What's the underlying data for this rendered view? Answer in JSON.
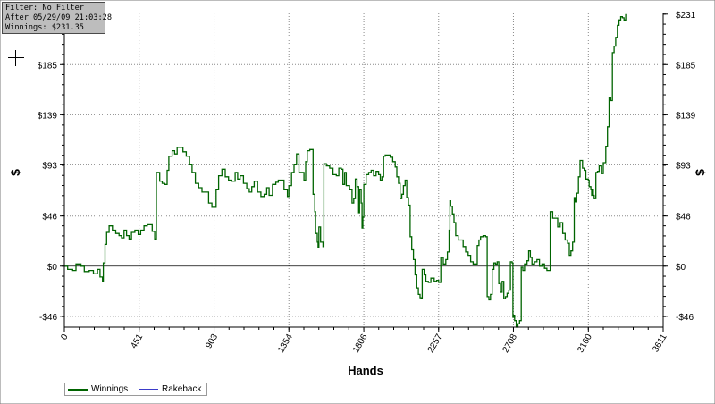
{
  "info_box": {
    "filter": "Filter: No Filter",
    "after": "After 05/29/09 21:03:28",
    "winnings": "Winnings: $231.35"
  },
  "chart_data": {
    "type": "line",
    "xlabel": "Hands",
    "ylabel_left": "$",
    "ylabel_right": "$",
    "xlim": [
      0,
      3611
    ],
    "ylim": [
      -56,
      232
    ],
    "x_ticks": [
      0,
      451,
      903,
      1354,
      1806,
      2257,
      2708,
      3160,
      3611
    ],
    "y_ticks": [
      {
        "value": 231.35,
        "label": "$231"
      },
      {
        "value": 185,
        "label": "$185"
      },
      {
        "value": 139,
        "label": "$139"
      },
      {
        "value": 93,
        "label": "$93"
      },
      {
        "value": 46,
        "label": "$46"
      },
      {
        "value": 0,
        "label": "$0"
      },
      {
        "value": -46,
        "label": "-$46"
      }
    ],
    "grid": true,
    "legend_position": "bottom-left",
    "series": [
      {
        "name": "Winnings",
        "color": "#006400",
        "points": [
          [
            0,
            0
          ],
          [
            20,
            -3
          ],
          [
            50,
            -4
          ],
          [
            70,
            2
          ],
          [
            100,
            0
          ],
          [
            120,
            -5
          ],
          [
            150,
            -4
          ],
          [
            175,
            -7
          ],
          [
            200,
            -3
          ],
          [
            215,
            -10
          ],
          [
            230,
            -14
          ],
          [
            235,
            3
          ],
          [
            245,
            20
          ],
          [
            255,
            31
          ],
          [
            270,
            37
          ],
          [
            290,
            33
          ],
          [
            310,
            30
          ],
          [
            330,
            28
          ],
          [
            345,
            26
          ],
          [
            360,
            33
          ],
          [
            375,
            28
          ],
          [
            390,
            25
          ],
          [
            405,
            31
          ],
          [
            425,
            33
          ],
          [
            445,
            29
          ],
          [
            460,
            33
          ],
          [
            480,
            37
          ],
          [
            500,
            38
          ],
          [
            515,
            38
          ],
          [
            530,
            32
          ],
          [
            545,
            25
          ],
          [
            555,
            86
          ],
          [
            575,
            78
          ],
          [
            590,
            76
          ],
          [
            605,
            75
          ],
          [
            620,
            88
          ],
          [
            630,
            101
          ],
          [
            650,
            106
          ],
          [
            665,
            103
          ],
          [
            680,
            109
          ],
          [
            700,
            109
          ],
          [
            715,
            105
          ],
          [
            735,
            101
          ],
          [
            755,
            93
          ],
          [
            770,
            86
          ],
          [
            790,
            76
          ],
          [
            810,
            72
          ],
          [
            830,
            68
          ],
          [
            850,
            68
          ],
          [
            870,
            58
          ],
          [
            890,
            54
          ],
          [
            903,
            54
          ],
          [
            915,
            70
          ],
          [
            930,
            83
          ],
          [
            950,
            89
          ],
          [
            970,
            82
          ],
          [
            990,
            79
          ],
          [
            1010,
            78
          ],
          [
            1030,
            86
          ],
          [
            1045,
            80
          ],
          [
            1060,
            83
          ],
          [
            1080,
            76
          ],
          [
            1100,
            71
          ],
          [
            1115,
            68
          ],
          [
            1130,
            73
          ],
          [
            1145,
            78
          ],
          [
            1165,
            68
          ],
          [
            1185,
            64
          ],
          [
            1205,
            66
          ],
          [
            1220,
            72
          ],
          [
            1235,
            65
          ],
          [
            1255,
            75
          ],
          [
            1275,
            77
          ],
          [
            1290,
            79
          ],
          [
            1310,
            79
          ],
          [
            1325,
            70
          ],
          [
            1345,
            64
          ],
          [
            1354,
            74
          ],
          [
            1370,
            86
          ],
          [
            1385,
            93
          ],
          [
            1400,
            103
          ],
          [
            1415,
            86
          ],
          [
            1430,
            86
          ],
          [
            1445,
            79
          ],
          [
            1455,
            96
          ],
          [
            1465,
            106
          ],
          [
            1480,
            107
          ],
          [
            1495,
            107
          ],
          [
            1500,
            66
          ],
          [
            1510,
            50
          ],
          [
            1515,
            30
          ],
          [
            1525,
            22
          ],
          [
            1530,
            17
          ],
          [
            1535,
            36
          ],
          [
            1545,
            22
          ],
          [
            1555,
            22
          ],
          [
            1560,
            18
          ],
          [
            1565,
            94
          ],
          [
            1580,
            92
          ],
          [
            1600,
            90
          ],
          [
            1620,
            84
          ],
          [
            1640,
            83
          ],
          [
            1655,
            90
          ],
          [
            1670,
            89
          ],
          [
            1680,
            75
          ],
          [
            1690,
            86
          ],
          [
            1700,
            74
          ],
          [
            1720,
            70
          ],
          [
            1735,
            58
          ],
          [
            1745,
            62
          ],
          [
            1755,
            80
          ],
          [
            1765,
            73
          ],
          [
            1775,
            49
          ],
          [
            1780,
            70
          ],
          [
            1790,
            58
          ],
          [
            1795,
            35
          ],
          [
            1800,
            45
          ],
          [
            1806,
            75
          ],
          [
            1820,
            84
          ],
          [
            1835,
            86
          ],
          [
            1850,
            88
          ],
          [
            1865,
            83
          ],
          [
            1880,
            87
          ],
          [
            1895,
            84
          ],
          [
            1905,
            79
          ],
          [
            1915,
            82
          ],
          [
            1925,
            101
          ],
          [
            1935,
            102
          ],
          [
            1950,
            102
          ],
          [
            1965,
            100
          ],
          [
            1980,
            96
          ],
          [
            1995,
            91
          ],
          [
            2005,
            82
          ],
          [
            2015,
            76
          ],
          [
            2025,
            62
          ],
          [
            2035,
            66
          ],
          [
            2045,
            74
          ],
          [
            2055,
            79
          ],
          [
            2065,
            63
          ],
          [
            2075,
            56
          ],
          [
            2085,
            27
          ],
          [
            2095,
            15
          ],
          [
            2105,
            6
          ],
          [
            2115,
            -8
          ],
          [
            2125,
            -20
          ],
          [
            2135,
            -26
          ],
          [
            2145,
            -29
          ],
          [
            2152,
            -30
          ],
          [
            2158,
            -3
          ],
          [
            2170,
            -8
          ],
          [
            2180,
            -14
          ],
          [
            2195,
            -15
          ],
          [
            2210,
            -11
          ],
          [
            2230,
            -14
          ],
          [
            2245,
            -13
          ],
          [
            2257,
            -15
          ],
          [
            2270,
            8
          ],
          [
            2285,
            2
          ],
          [
            2300,
            6
          ],
          [
            2310,
            13
          ],
          [
            2320,
            33
          ],
          [
            2325,
            60
          ],
          [
            2330,
            55
          ],
          [
            2340,
            48
          ],
          [
            2350,
            40
          ],
          [
            2360,
            28
          ],
          [
            2375,
            24
          ],
          [
            2390,
            24
          ],
          [
            2405,
            18
          ],
          [
            2420,
            13
          ],
          [
            2435,
            10
          ],
          [
            2450,
            4
          ],
          [
            2465,
            2
          ],
          [
            2480,
            2
          ],
          [
            2490,
            19
          ],
          [
            2500,
            24
          ],
          [
            2510,
            27
          ],
          [
            2525,
            28
          ],
          [
            2540,
            27
          ],
          [
            2550,
            -28
          ],
          [
            2560,
            -31
          ],
          [
            2570,
            -26
          ],
          [
            2580,
            -3
          ],
          [
            2590,
            3
          ],
          [
            2600,
            2
          ],
          [
            2610,
            4
          ],
          [
            2620,
            -16
          ],
          [
            2630,
            -24
          ],
          [
            2640,
            -14
          ],
          [
            2650,
            -30
          ],
          [
            2660,
            -28
          ],
          [
            2670,
            -25
          ],
          [
            2680,
            -22
          ],
          [
            2690,
            4
          ],
          [
            2700,
            3
          ],
          [
            2705,
            -47
          ],
          [
            2708,
            -45
          ],
          [
            2715,
            -50
          ],
          [
            2725,
            -56
          ],
          [
            2735,
            -53
          ],
          [
            2745,
            -50
          ],
          [
            2755,
            -1
          ],
          [
            2765,
            -4
          ],
          [
            2775,
            2
          ],
          [
            2790,
            5
          ],
          [
            2800,
            14
          ],
          [
            2810,
            8
          ],
          [
            2820,
            2
          ],
          [
            2835,
            4
          ],
          [
            2850,
            6
          ],
          [
            2865,
            0
          ],
          [
            2880,
            2
          ],
          [
            2895,
            -2
          ],
          [
            2910,
            -4
          ],
          [
            2930,
            50
          ],
          [
            2945,
            44
          ],
          [
            2960,
            44
          ],
          [
            2975,
            36
          ],
          [
            2990,
            40
          ],
          [
            3005,
            30
          ],
          [
            3020,
            24
          ],
          [
            3035,
            21
          ],
          [
            3045,
            10
          ],
          [
            3055,
            14
          ],
          [
            3065,
            22
          ],
          [
            3075,
            63
          ],
          [
            3080,
            59
          ],
          [
            3090,
            67
          ],
          [
            3100,
            82
          ],
          [
            3110,
            97
          ],
          [
            3125,
            90
          ],
          [
            3135,
            88
          ],
          [
            3145,
            80
          ],
          [
            3160,
            79
          ],
          [
            3165,
            73
          ],
          [
            3175,
            70
          ],
          [
            3180,
            65
          ],
          [
            3185,
            70
          ],
          [
            3190,
            65
          ],
          [
            3195,
            62
          ],
          [
            3205,
            86
          ],
          [
            3215,
            87
          ],
          [
            3225,
            92
          ],
          [
            3240,
            85
          ],
          [
            3250,
            95
          ],
          [
            3265,
            110
          ],
          [
            3275,
            128
          ],
          [
            3285,
            155
          ],
          [
            3295,
            152
          ],
          [
            3305,
            196
          ],
          [
            3315,
            202
          ],
          [
            3325,
            210
          ],
          [
            3335,
            221
          ],
          [
            3345,
            226
          ],
          [
            3355,
            229
          ],
          [
            3365,
            228
          ],
          [
            3375,
            226
          ],
          [
            3385,
            231.35
          ]
        ]
      },
      {
        "name": "Rakeback",
        "color": "#3b3bc9",
        "points": []
      }
    ]
  }
}
